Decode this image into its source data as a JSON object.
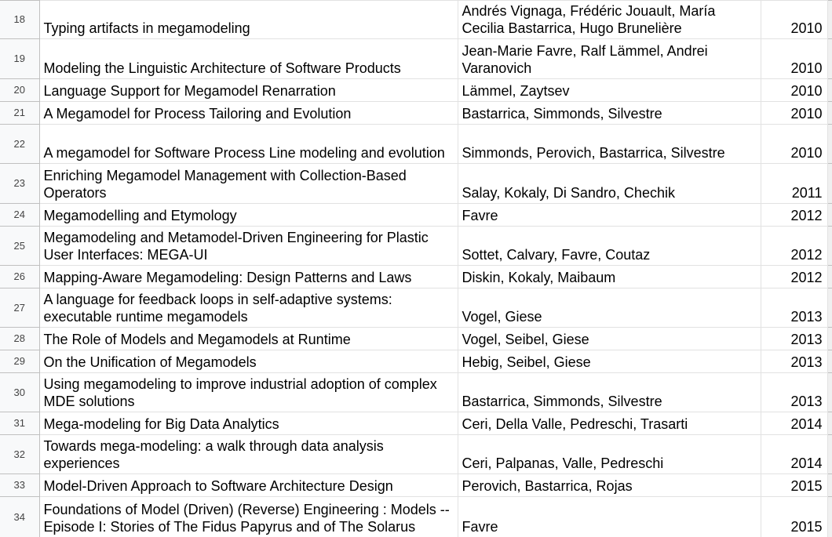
{
  "rows": [
    {
      "num": "18",
      "title": "Typing artifacts in megamodeling",
      "authors": "Andrés Vignaga, Frédéric Jouault, María Cecilia Bastarrica, Hugo Brunelière",
      "year": "2010"
    },
    {
      "num": "19",
      "title": "Modeling the Linguistic Architecture of Software Products",
      "authors": "Jean-Marie Favre, Ralf Lämmel, Andrei Varanovich",
      "year": "2010"
    },
    {
      "num": "20",
      "title": "Language Support for Megamodel Renarration",
      "authors": "Lämmel, Zaytsev",
      "year": "2010"
    },
    {
      "num": "21",
      "title": "A Megamodel for Process Tailoring and Evolution",
      "authors": "Bastarrica, Simmonds, Silvestre",
      "year": "2010"
    },
    {
      "num": "22",
      "title": "A megamodel for Software Process Line modeling and evolution",
      "authors": "Simmonds, Perovich, Bastarrica, Silvestre",
      "year": "2010"
    },
    {
      "num": "23",
      "title": "Enriching Megamodel Management with Collection-Based Operators",
      "authors": "Salay, Kokaly, Di Sandro, Chechik",
      "year": "2011"
    },
    {
      "num": "24",
      "title": "Megamodelling and Etymology",
      "authors": "Favre",
      "year": "2012"
    },
    {
      "num": "25",
      "title": "Megamodeling and Metamodel-Driven Engineering for Plastic User Interfaces: MEGA-UI",
      "authors": "Sottet, Calvary, Favre, Coutaz",
      "year": "2012"
    },
    {
      "num": "26",
      "title": "Mapping-Aware Megamodeling: Design Patterns and Laws",
      "authors": "Diskin, Kokaly, Maibaum",
      "year": "2012"
    },
    {
      "num": "27",
      "title": "A language for feedback loops in self-adaptive systems: executable runtime megamodels",
      "authors": "Vogel, Giese",
      "year": "2013"
    },
    {
      "num": "28",
      "title": "The Role of Models and Megamodels at Runtime",
      "authors": "Vogel, Seibel, Giese",
      "year": "2013"
    },
    {
      "num": "29",
      "title": "On the Unification of Megamodels",
      "authors": "Hebig, Seibel, Giese",
      "year": "2013"
    },
    {
      "num": "30",
      "title": "Using megamodeling to improve industrial adoption of complex MDE solutions",
      "authors": "Bastarrica, Simmonds, Silvestre",
      "year": "2013"
    },
    {
      "num": "31",
      "title": "Mega-modeling for Big Data Analytics",
      "authors": "Ceri, Della Valle, Pedreschi, Trasarti",
      "year": "2014"
    },
    {
      "num": "32",
      "title": "Towards mega-modeling: a walk through data analysis experiences",
      "authors": "Ceri, Palpanas, Valle, Pedreschi",
      "year": "2014"
    },
    {
      "num": "33",
      "title": "Model-Driven Approach to Software Architecture Design",
      "authors": "Perovich, Bastarrica, Rojas",
      "year": "2015"
    },
    {
      "num": "34",
      "title": "Foundations of Model (Driven) (Reverse) Engineering : Models -- Episode I: Stories of The Fidus Papyrus and of The Solarus",
      "authors": "Favre",
      "year": "2015"
    }
  ]
}
